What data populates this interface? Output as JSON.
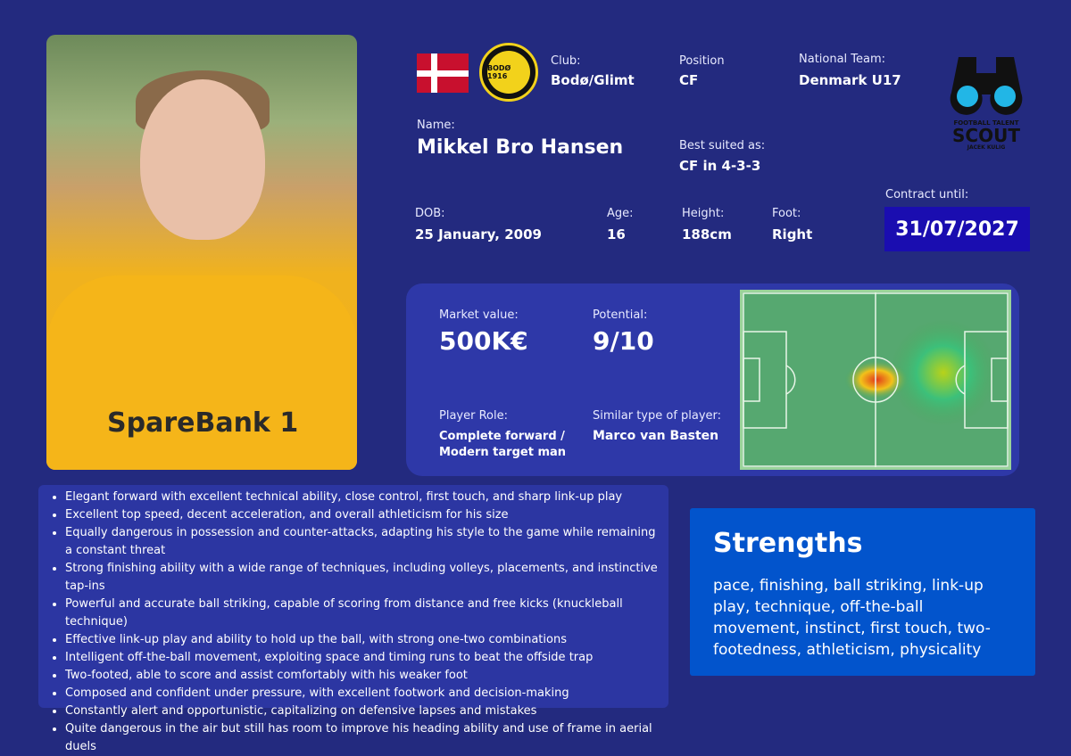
{
  "player": {
    "name_label": "Name:",
    "name": "Mikkel Bro Hansen",
    "club_label": "Club:",
    "club": "Bodø/Glimt",
    "position_label": "Position",
    "position": "CF",
    "national_label": "National Team:",
    "national": "Denmark U17",
    "best_label": "Best suited as:",
    "best": "CF in 4-3-3",
    "dob_label": "DOB:",
    "dob": "25 January, 2009",
    "age_label": "Age:",
    "age": "16",
    "height_label": "Height:",
    "height": "188cm",
    "foot_label": "Foot:",
    "foot": "Right",
    "contract_label": "Contract until:",
    "contract": "31/07/2027"
  },
  "logo": {
    "line1": "FOOTBALL TALENT",
    "line2": "SCOUT",
    "line3": "JACEK KULIG"
  },
  "crest_text": "BODØ 1916",
  "photo_sponsor": "SpareBank 1",
  "stats": {
    "market_label": "Market value:",
    "market": "500K€",
    "potential_label": "Potential:",
    "potential": "9/10",
    "role_label": "Player Role:",
    "role": "Complete forward / Modern target man",
    "similar_label": "Similar type of player:",
    "similar": "Marco van Basten"
  },
  "colors": {
    "background": "#232a7f",
    "panel": "#2e38a8",
    "contract": "#1a0db0",
    "strengths": "#0254cc"
  },
  "description": [
    "Elegant forward with excellent technical ability, close control, first touch, and sharp link-up play",
    "Excellent top speed, decent acceleration, and overall athleticism for his size",
    "Equally dangerous in possession and counter-attacks, adapting his style to the game while remaining a constant threat",
    "Strong finishing ability with a wide range of techniques, including volleys, placements, and instinctive tap-ins",
    "Powerful and accurate ball striking, capable of scoring from distance and free kicks (knuckleball technique)",
    "Effective link-up play and ability to hold up the ball, with strong one-two combinations",
    "Intelligent off-the-ball movement, exploiting space and timing runs to beat the offside trap",
    "Two-footed, able to score and assist comfortably with his weaker foot",
    "Composed and confident under pressure, with excellent footwork and decision-making",
    "Constantly alert and opportunistic, capitalizing on defensive lapses and mistakes",
    "Quite dangerous in the air but still has room to improve his heading ability and use of frame in aerial duels"
  ],
  "strengths": {
    "title": "Strengths",
    "text": "pace, finishing, ball striking, link-up play, technique, off-the-ball movement, instinct, first touch, two-footedness, athleticism, physicality"
  }
}
